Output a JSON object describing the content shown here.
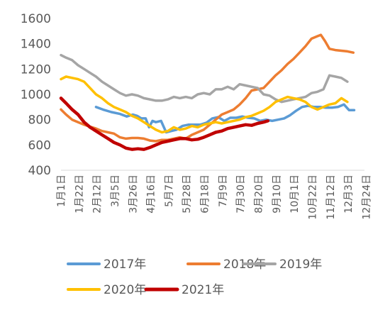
{
  "chart_data": {
    "type": "line",
    "title": "",
    "xlabel": "",
    "ylabel": "",
    "ylim": [
      400,
      1600
    ],
    "yticks": [
      400,
      600,
      800,
      1000,
      1200,
      1400,
      1600
    ],
    "grid": false,
    "legend_position": "bottom",
    "x_range": [
      1,
      356
    ],
    "categories": [
      "1月1日",
      "1月22日",
      "2月12日",
      "3月5日",
      "3月26日",
      "4月16日",
      "5月7日",
      "5月28日",
      "6月18日",
      "7月9日",
      "7月30日",
      "8月20日",
      "9月10日",
      "10月1日",
      "10月22日",
      "11月12日",
      "12月3日",
      "12月24日"
    ],
    "x_label_days": [
      1,
      22,
      43,
      64,
      85,
      106,
      127,
      148,
      169,
      190,
      211,
      232,
      253,
      274,
      295,
      316,
      337,
      358
    ],
    "series": [
      {
        "name": "2017年",
        "color": "#5B9BD5",
        "points": [
          [
            42,
            900
          ],
          [
            50,
            880
          ],
          [
            60,
            860
          ],
          [
            70,
            845
          ],
          [
            78,
            825
          ],
          [
            85,
            840
          ],
          [
            90,
            830
          ],
          [
            95,
            810
          ],
          [
            100,
            810
          ],
          [
            104,
            740
          ],
          [
            108,
            790
          ],
          [
            112,
            780
          ],
          [
            118,
            790
          ],
          [
            124,
            700
          ],
          [
            130,
            710
          ],
          [
            136,
            720
          ],
          [
            143,
            750
          ],
          [
            150,
            760
          ],
          [
            157,
            760
          ],
          [
            164,
            760
          ],
          [
            171,
            775
          ],
          [
            178,
            810
          ],
          [
            185,
            820
          ],
          [
            192,
            790
          ],
          [
            199,
            815
          ],
          [
            206,
            815
          ],
          [
            213,
            825
          ],
          [
            220,
            815
          ],
          [
            227,
            810
          ],
          [
            234,
            790
          ],
          [
            241,
            800
          ],
          [
            248,
            790
          ],
          [
            255,
            800
          ],
          [
            262,
            810
          ],
          [
            269,
            835
          ],
          [
            276,
            870
          ],
          [
            283,
            900
          ],
          [
            290,
            910
          ],
          [
            297,
            900
          ],
          [
            304,
            900
          ],
          [
            311,
            895
          ],
          [
            318,
            895
          ],
          [
            325,
            900
          ],
          [
            332,
            920
          ],
          [
            338,
            875
          ],
          [
            344,
            875
          ]
        ]
      },
      {
        "name": "2018年",
        "color": "#ED7D31",
        "points": [
          [
            1,
            880
          ],
          [
            7,
            840
          ],
          [
            14,
            800
          ],
          [
            21,
            780
          ],
          [
            28,
            760
          ],
          [
            35,
            745
          ],
          [
            42,
            730
          ],
          [
            49,
            710
          ],
          [
            56,
            700
          ],
          [
            63,
            690
          ],
          [
            70,
            660
          ],
          [
            77,
            650
          ],
          [
            84,
            655
          ],
          [
            91,
            655
          ],
          [
            98,
            650
          ],
          [
            105,
            635
          ],
          [
            112,
            630
          ],
          [
            119,
            640
          ],
          [
            126,
            640
          ],
          [
            133,
            650
          ],
          [
            140,
            660
          ],
          [
            147,
            650
          ],
          [
            154,
            680
          ],
          [
            161,
            700
          ],
          [
            168,
            720
          ],
          [
            175,
            760
          ],
          [
            182,
            800
          ],
          [
            189,
            840
          ],
          [
            196,
            860
          ],
          [
            203,
            880
          ],
          [
            210,
            920
          ],
          [
            217,
            970
          ],
          [
            224,
            1030
          ],
          [
            231,
            1040
          ],
          [
            238,
            1050
          ],
          [
            245,
            1100
          ],
          [
            252,
            1150
          ],
          [
            259,
            1190
          ],
          [
            266,
            1240
          ],
          [
            273,
            1280
          ],
          [
            280,
            1330
          ],
          [
            287,
            1380
          ],
          [
            294,
            1440
          ],
          [
            301,
            1460
          ],
          [
            305,
            1470
          ],
          [
            310,
            1420
          ],
          [
            315,
            1360
          ],
          [
            322,
            1350
          ],
          [
            329,
            1345
          ],
          [
            336,
            1340
          ],
          [
            343,
            1330
          ]
        ]
      },
      {
        "name": "2019年",
        "color": "#A5A5A5",
        "points": [
          [
            1,
            1310
          ],
          [
            7,
            1290
          ],
          [
            14,
            1270
          ],
          [
            21,
            1230
          ],
          [
            28,
            1200
          ],
          [
            35,
            1170
          ],
          [
            42,
            1140
          ],
          [
            49,
            1100
          ],
          [
            56,
            1070
          ],
          [
            63,
            1040
          ],
          [
            70,
            1010
          ],
          [
            77,
            990
          ],
          [
            84,
            1000
          ],
          [
            91,
            990
          ],
          [
            98,
            970
          ],
          [
            105,
            960
          ],
          [
            112,
            950
          ],
          [
            119,
            950
          ],
          [
            126,
            960
          ],
          [
            133,
            980
          ],
          [
            140,
            970
          ],
          [
            147,
            980
          ],
          [
            154,
            970
          ],
          [
            161,
            1000
          ],
          [
            168,
            1010
          ],
          [
            175,
            1000
          ],
          [
            182,
            1040
          ],
          [
            189,
            1040
          ],
          [
            196,
            1060
          ],
          [
            203,
            1040
          ],
          [
            210,
            1080
          ],
          [
            217,
            1070
          ],
          [
            224,
            1060
          ],
          [
            231,
            1050
          ],
          [
            238,
            1000
          ],
          [
            245,
            990
          ],
          [
            252,
            960
          ],
          [
            259,
            940
          ],
          [
            266,
            950
          ],
          [
            273,
            960
          ],
          [
            280,
            970
          ],
          [
            287,
            980
          ],
          [
            294,
            1010
          ],
          [
            301,
            1020
          ],
          [
            308,
            1040
          ],
          [
            315,
            1150
          ],
          [
            322,
            1140
          ],
          [
            329,
            1130
          ],
          [
            336,
            1100
          ]
        ]
      },
      {
        "name": "2020年",
        "color": "#FFC000",
        "points": [
          [
            1,
            1120
          ],
          [
            7,
            1140
          ],
          [
            14,
            1130
          ],
          [
            21,
            1120
          ],
          [
            28,
            1100
          ],
          [
            35,
            1050
          ],
          [
            42,
            1000
          ],
          [
            49,
            970
          ],
          [
            56,
            930
          ],
          [
            63,
            900
          ],
          [
            70,
            880
          ],
          [
            77,
            860
          ],
          [
            84,
            830
          ],
          [
            91,
            810
          ],
          [
            98,
            780
          ],
          [
            105,
            750
          ],
          [
            112,
            720
          ],
          [
            119,
            700
          ],
          [
            126,
            710
          ],
          [
            133,
            740
          ],
          [
            140,
            720
          ],
          [
            147,
            730
          ],
          [
            154,
            750
          ],
          [
            161,
            740
          ],
          [
            168,
            760
          ],
          [
            175,
            770
          ],
          [
            182,
            780
          ],
          [
            189,
            770
          ],
          [
            196,
            780
          ],
          [
            203,
            790
          ],
          [
            210,
            800
          ],
          [
            217,
            820
          ],
          [
            224,
            830
          ],
          [
            231,
            850
          ],
          [
            238,
            870
          ],
          [
            245,
            900
          ],
          [
            252,
            940
          ],
          [
            259,
            960
          ],
          [
            266,
            980
          ],
          [
            273,
            970
          ],
          [
            280,
            960
          ],
          [
            287,
            940
          ],
          [
            294,
            900
          ],
          [
            301,
            880
          ],
          [
            308,
            900
          ],
          [
            315,
            920
          ],
          [
            322,
            930
          ],
          [
            329,
            970
          ],
          [
            336,
            940
          ]
        ]
      },
      {
        "name": "2021年",
        "color": "#C00000",
        "points": [
          [
            1,
            970
          ],
          [
            7,
            930
          ],
          [
            14,
            880
          ],
          [
            21,
            840
          ],
          [
            28,
            780
          ],
          [
            35,
            740
          ],
          [
            42,
            710
          ],
          [
            49,
            680
          ],
          [
            56,
            650
          ],
          [
            63,
            620
          ],
          [
            70,
            600
          ],
          [
            77,
            575
          ],
          [
            84,
            565
          ],
          [
            91,
            570
          ],
          [
            98,
            565
          ],
          [
            105,
            580
          ],
          [
            112,
            600
          ],
          [
            119,
            620
          ],
          [
            126,
            630
          ],
          [
            133,
            640
          ],
          [
            140,
            650
          ],
          [
            147,
            650
          ],
          [
            154,
            640
          ],
          [
            161,
            645
          ],
          [
            168,
            660
          ],
          [
            175,
            680
          ],
          [
            182,
            700
          ],
          [
            189,
            710
          ],
          [
            196,
            730
          ],
          [
            203,
            740
          ],
          [
            210,
            750
          ],
          [
            217,
            760
          ],
          [
            224,
            755
          ],
          [
            231,
            770
          ],
          [
            238,
            780
          ],
          [
            243,
            790
          ]
        ]
      }
    ]
  }
}
